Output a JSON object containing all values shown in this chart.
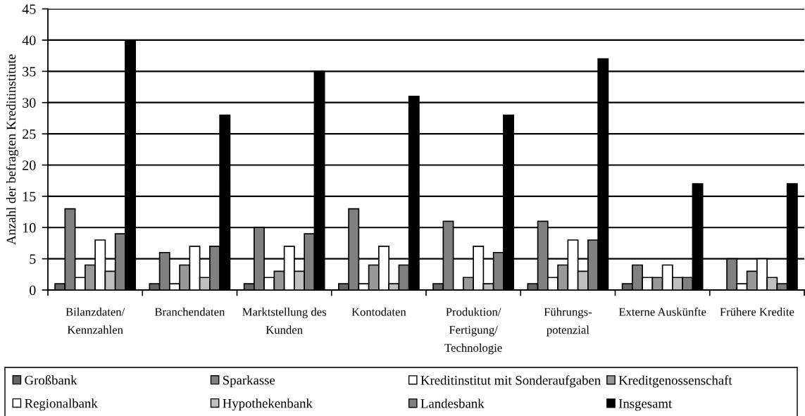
{
  "chart_data": {
    "type": "bar",
    "ylabel": "Anzahl der befragten Kreditinstitute",
    "categories": [
      "Bilanzdaten/\nKennzahlen",
      "Branchendaten",
      "Marktstellung des\nKunden",
      "Kontodaten",
      "Produktion/\nFertigung/\nTechnologie",
      "Führungs-\npotenzial",
      "Externe Auskünfte",
      "Frühere Kredite"
    ],
    "series": [
      {
        "name": "Großbank",
        "color": "#666666",
        "values": [
          1,
          1,
          1,
          1,
          1,
          1,
          1,
          0
        ]
      },
      {
        "name": "Sparkasse",
        "color": "#808080",
        "values": [
          13,
          6,
          10,
          13,
          11,
          11,
          4,
          5
        ]
      },
      {
        "name": "Kreditinstitut mit Sonderaufgaben",
        "color": "#ffffff",
        "values": [
          2,
          1,
          2,
          1,
          0,
          2,
          2,
          1
        ]
      },
      {
        "name": "Kreditgenossenschaft",
        "color": "#999999",
        "values": [
          4,
          4,
          3,
          4,
          2,
          4,
          2,
          3
        ]
      },
      {
        "name": "Regionalbank",
        "color": "#ffffff",
        "values": [
          8,
          7,
          7,
          7,
          7,
          8,
          4,
          5
        ]
      },
      {
        "name": "Hypothekenbank",
        "color": "#c0c0c0",
        "values": [
          3,
          2,
          3,
          1,
          1,
          3,
          2,
          2
        ]
      },
      {
        "name": "Landesbank",
        "color": "#808080",
        "values": [
          9,
          7,
          9,
          4,
          6,
          8,
          2,
          1
        ]
      },
      {
        "name": "Insgesamt",
        "color": "#000000",
        "values": [
          40,
          28,
          35,
          31,
          28,
          37,
          17,
          17
        ]
      }
    ],
    "ylim": [
      0,
      45
    ],
    "yticks": [
      0,
      5,
      10,
      15,
      20,
      25,
      30,
      35,
      40,
      45
    ],
    "grid": "y",
    "legend": "bottom"
  }
}
